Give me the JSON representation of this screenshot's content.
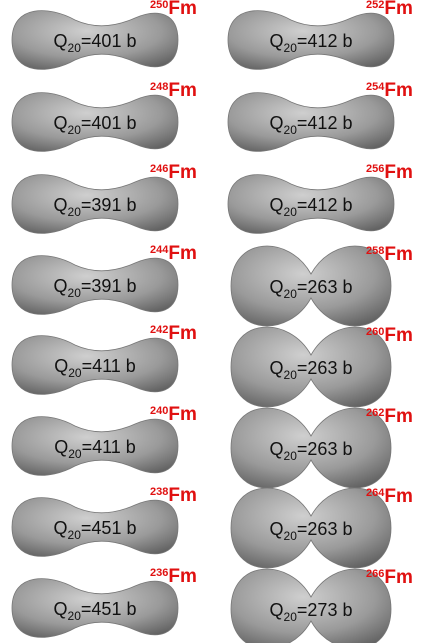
{
  "symbol": "Q",
  "subscript": "20",
  "element": "Fm",
  "panels": [
    {
      "mass": "250",
      "moment": "=401 b"
    },
    {
      "mass": "248",
      "moment": "=401 b"
    },
    {
      "mass": "246",
      "moment": "=391 b"
    },
    {
      "mass": "244",
      "moment": "=391 b"
    },
    {
      "mass": "242",
      "moment": "=411 b"
    },
    {
      "mass": "240",
      "moment": "=411 b"
    },
    {
      "mass": "238",
      "moment": "=451 b"
    },
    {
      "mass": "236",
      "moment": "=451 b"
    },
    {
      "mass": "252",
      "moment": "=412 b"
    },
    {
      "mass": "254",
      "moment": "=412 b"
    },
    {
      "mass": "256",
      "moment": "=412 b"
    },
    {
      "mass": "258",
      "moment": "=263 b"
    },
    {
      "mass": "260",
      "moment": "=263 b"
    },
    {
      "mass": "262",
      "moment": "=263 b"
    },
    {
      "mass": "264",
      "moment": "=263 b"
    },
    {
      "mass": "266",
      "moment": "=273 b"
    }
  ]
}
